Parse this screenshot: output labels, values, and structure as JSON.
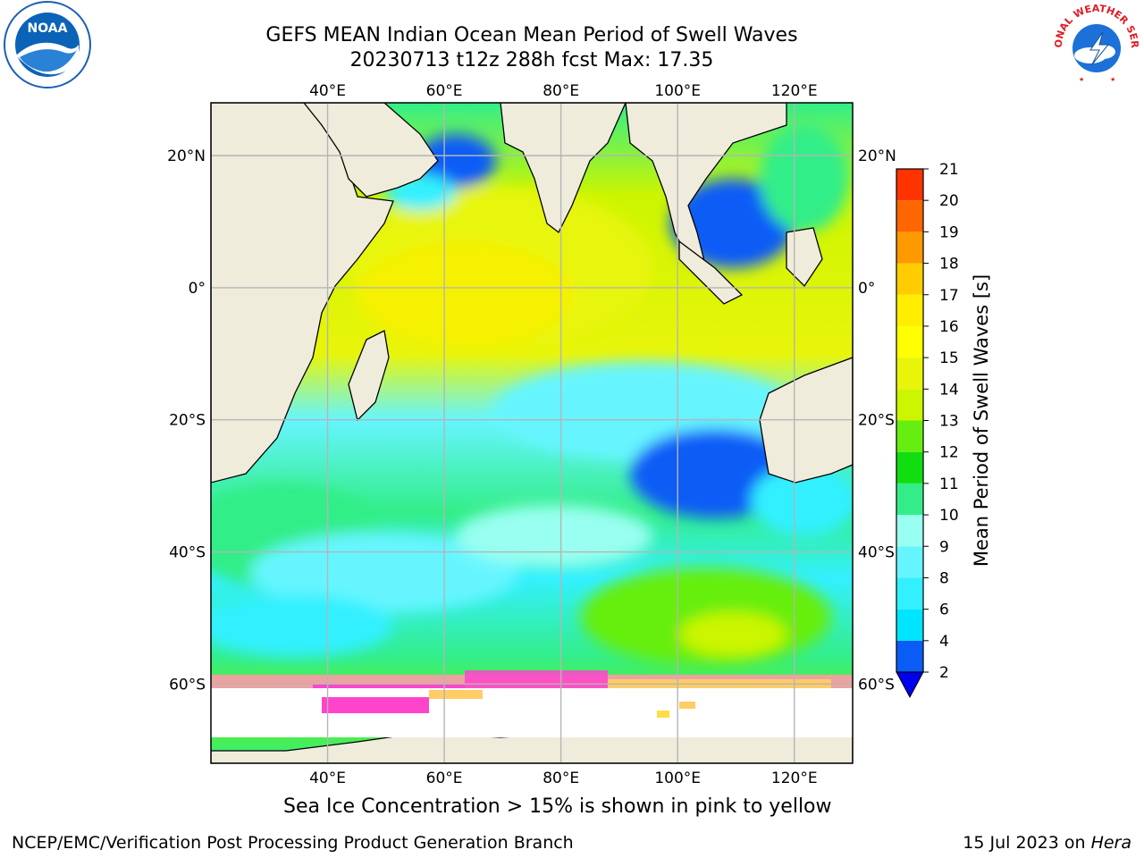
{
  "header": {
    "title_line1": "GEFS MEAN Indian Ocean Mean Period of Swell Waves",
    "title_line2": "20230713 t12z 288h fcst   Max: 17.35"
  },
  "map": {
    "lon_range": [
      20,
      130
    ],
    "lat_range": [
      -72,
      28
    ],
    "lon_ticks": [
      40,
      60,
      80,
      100,
      120
    ],
    "lon_tick_labels": [
      "40°E",
      "60°E",
      "80°E",
      "100°E",
      "120°E"
    ],
    "lat_ticks": [
      20,
      0,
      -20,
      -40,
      -60
    ],
    "lat_tick_labels": [
      "20°N",
      "0°",
      "20°S",
      "40°S",
      "60°S"
    ],
    "gridlines": true,
    "land_color": "#efecdc",
    "ice_colors": [
      "#ff44cc",
      "#ff99aa",
      "#ffcc66",
      "#ffdd44"
    ]
  },
  "colorbar": {
    "label": "Mean Period of Swell Waves [s]",
    "ticks": [
      "2",
      "4",
      "6",
      "8",
      "9",
      "10",
      "11",
      "12",
      "13",
      "14",
      "15",
      "16",
      "17",
      "18",
      "19",
      "20",
      "21"
    ],
    "colors": [
      "#0a5cf6",
      "#00e5ff",
      "#33f0ff",
      "#66f5ff",
      "#99fff0",
      "#33ee88",
      "#11dd11",
      "#66ee11",
      "#ccf500",
      "#e8f50a",
      "#ffff00",
      "#ffee00",
      "#ffcc00",
      "#ff9900",
      "#ff6600",
      "#ff3300",
      "#ff0000"
    ],
    "under_color": "#0000ee"
  },
  "caption": "Sea Ice Concentration > 15% is shown in pink to yellow",
  "footer": {
    "left": "NCEP/EMC/Verification Post Processing Product Generation Branch",
    "right_prefix": "15 Jul 2023 on ",
    "right_host": "Hera"
  },
  "logos": {
    "left": "NOAA",
    "right_text": "NATIONAL WEATHER SERVICE"
  }
}
